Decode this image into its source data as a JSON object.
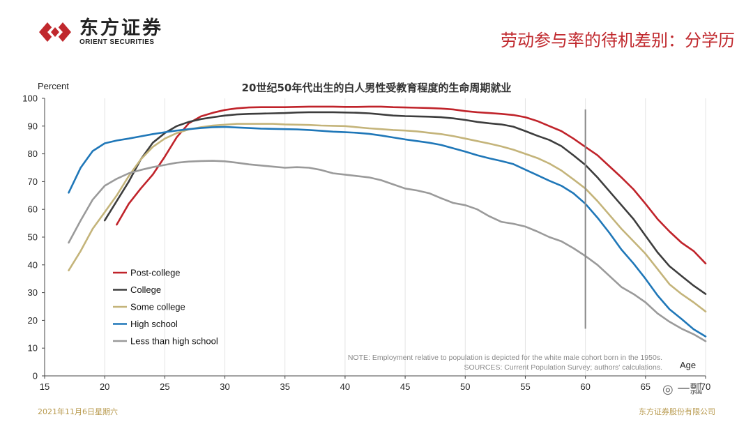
{
  "header": {
    "logo_cn": "东方证券",
    "logo_en": "ORIENT SECURITIES",
    "page_title": "劳动参与率的待机差别：分学历"
  },
  "footer": {
    "date": "2021年11月6日星期六",
    "company": "东方证券股份有限公司"
  },
  "watermark": "一瓢",
  "colors": {
    "brand_red": "#c0282d",
    "footer_gold": "#b89a4e",
    "post_college": "#c0232a",
    "college": "#3d3d3d",
    "some_college": "#c4b47a",
    "high_school": "#1f77b8",
    "less_than_high_school": "#9a9a9a",
    "vline": "#888888",
    "grid": "#e4e4e4"
  },
  "chart_data": {
    "type": "line",
    "title": "20世纪50年代出生的白人男性受教育程度的生命周期就业",
    "ylabel": "Percent",
    "xlabel": "Age",
    "xlim": [
      15,
      70
    ],
    "ylim": [
      0,
      100
    ],
    "xticks": [
      15,
      20,
      25,
      30,
      35,
      40,
      45,
      50,
      55,
      60,
      65,
      70
    ],
    "yticks": [
      0,
      10,
      20,
      30,
      40,
      50,
      60,
      70,
      80,
      90,
      100
    ],
    "grid": "vertical",
    "vline_x": 60,
    "vline_range": [
      17,
      96
    ],
    "legend_position": "bottom-left",
    "notes": [
      "NOTE: Employment  relative to population is depicted for the white male cohort born in the 1950s.",
      "SOURCES: Current Population Survey; authors' calculations."
    ],
    "series": [
      {
        "name": "Post-college",
        "color": "#c0232a",
        "points": [
          [
            21,
            54.5
          ],
          [
            22,
            62
          ],
          [
            23,
            67.5
          ],
          [
            24,
            72.5
          ],
          [
            25,
            79
          ],
          [
            26,
            86
          ],
          [
            27,
            91
          ],
          [
            28,
            93.5
          ],
          [
            29,
            94.8
          ],
          [
            30,
            95.8
          ],
          [
            31,
            96.4
          ],
          [
            32,
            96.7
          ],
          [
            33,
            96.8
          ],
          [
            34,
            96.8
          ],
          [
            35,
            96.8
          ],
          [
            36,
            96.9
          ],
          [
            37,
            97
          ],
          [
            38,
            97
          ],
          [
            39,
            97
          ],
          [
            40,
            96.9
          ],
          [
            41,
            96.9
          ],
          [
            42,
            97
          ],
          [
            43,
            97
          ],
          [
            44,
            96.8
          ],
          [
            45,
            96.7
          ],
          [
            46,
            96.6
          ],
          [
            47,
            96.5
          ],
          [
            48,
            96.3
          ],
          [
            49,
            96
          ],
          [
            50,
            95.4
          ],
          [
            51,
            95
          ],
          [
            52,
            94.7
          ],
          [
            53,
            94.4
          ],
          [
            54,
            94
          ],
          [
            55,
            93.2
          ],
          [
            56,
            91.8
          ],
          [
            57,
            90
          ],
          [
            58,
            88.2
          ],
          [
            59,
            85.5
          ],
          [
            60,
            82.5
          ],
          [
            61,
            79.5
          ],
          [
            62,
            75.5
          ],
          [
            63,
            71.5
          ],
          [
            64,
            67.2
          ],
          [
            65,
            62
          ],
          [
            66,
            56.5
          ],
          [
            67,
            52
          ],
          [
            68,
            48
          ],
          [
            69,
            45
          ],
          [
            70,
            40.5
          ]
        ]
      },
      {
        "name": "College",
        "color": "#3d3d3d",
        "points": [
          [
            20,
            56
          ],
          [
            21,
            63
          ],
          [
            22,
            70
          ],
          [
            23,
            78
          ],
          [
            24,
            84
          ],
          [
            25,
            87.5
          ],
          [
            26,
            90
          ],
          [
            27,
            91.5
          ],
          [
            28,
            92.5
          ],
          [
            29,
            93.2
          ],
          [
            30,
            93.8
          ],
          [
            31,
            94.2
          ],
          [
            32,
            94.4
          ],
          [
            33,
            94.5
          ],
          [
            34,
            94.6
          ],
          [
            35,
            94.7
          ],
          [
            36,
            94.9
          ],
          [
            37,
            95
          ],
          [
            38,
            95
          ],
          [
            39,
            95
          ],
          [
            40,
            94.9
          ],
          [
            41,
            94.8
          ],
          [
            42,
            94.6
          ],
          [
            43,
            94.2
          ],
          [
            44,
            93.8
          ],
          [
            45,
            93.6
          ],
          [
            46,
            93.5
          ],
          [
            47,
            93.4
          ],
          [
            48,
            93.2
          ],
          [
            49,
            92.8
          ],
          [
            50,
            92.2
          ],
          [
            51,
            91.5
          ],
          [
            52,
            91
          ],
          [
            53,
            90.6
          ],
          [
            54,
            89.8
          ],
          [
            55,
            88.2
          ],
          [
            56,
            86.5
          ],
          [
            57,
            85
          ],
          [
            58,
            82.8
          ],
          [
            59,
            79.5
          ],
          [
            60,
            76
          ],
          [
            61,
            71.5
          ],
          [
            62,
            66.5
          ],
          [
            63,
            61.5
          ],
          [
            64,
            56.5
          ],
          [
            65,
            50.5
          ],
          [
            66,
            44.5
          ],
          [
            67,
            39.5
          ],
          [
            68,
            36
          ],
          [
            69,
            32.5
          ],
          [
            70,
            29.5
          ]
        ]
      },
      {
        "name": "Some college",
        "color": "#c4b47a",
        "points": [
          [
            17,
            38
          ],
          [
            18,
            45
          ],
          [
            19,
            53
          ],
          [
            20,
            59
          ],
          [
            21,
            65
          ],
          [
            22,
            72
          ],
          [
            23,
            78
          ],
          [
            24,
            82.5
          ],
          [
            25,
            85.5
          ],
          [
            26,
            87.5
          ],
          [
            27,
            88.8
          ],
          [
            28,
            89.6
          ],
          [
            29,
            90.2
          ],
          [
            30,
            90.5
          ],
          [
            31,
            90.8
          ],
          [
            32,
            90.8
          ],
          [
            33,
            90.8
          ],
          [
            34,
            90.8
          ],
          [
            35,
            90.6
          ],
          [
            36,
            90.5
          ],
          [
            37,
            90.4
          ],
          [
            38,
            90.2
          ],
          [
            39,
            90.1
          ],
          [
            40,
            90
          ],
          [
            41,
            89.6
          ],
          [
            42,
            89.2
          ],
          [
            43,
            88.9
          ],
          [
            44,
            88.6
          ],
          [
            45,
            88.4
          ],
          [
            46,
            88.1
          ],
          [
            47,
            87.6
          ],
          [
            48,
            87.1
          ],
          [
            49,
            86.4
          ],
          [
            50,
            85.5
          ],
          [
            51,
            84.6
          ],
          [
            52,
            83.7
          ],
          [
            53,
            82.7
          ],
          [
            54,
            81.5
          ],
          [
            55,
            80
          ],
          [
            56,
            78.5
          ],
          [
            57,
            76.5
          ],
          [
            58,
            74
          ],
          [
            59,
            70.8
          ],
          [
            60,
            67.5
          ],
          [
            61,
            63
          ],
          [
            62,
            58
          ],
          [
            63,
            53
          ],
          [
            64,
            48.5
          ],
          [
            65,
            44
          ],
          [
            66,
            38.5
          ],
          [
            67,
            33
          ],
          [
            68,
            29.5
          ],
          [
            69,
            26.5
          ],
          [
            70,
            23.2
          ]
        ]
      },
      {
        "name": "High school",
        "color": "#1f77b8",
        "points": [
          [
            17,
            66
          ],
          [
            18,
            75
          ],
          [
            19,
            81
          ],
          [
            20,
            83.8
          ],
          [
            21,
            84.8
          ],
          [
            22,
            85.5
          ],
          [
            23,
            86.3
          ],
          [
            24,
            87.1
          ],
          [
            25,
            87.8
          ],
          [
            26,
            88.4
          ],
          [
            27,
            88.9
          ],
          [
            28,
            89.3
          ],
          [
            29,
            89.6
          ],
          [
            30,
            89.7
          ],
          [
            31,
            89.5
          ],
          [
            32,
            89.3
          ],
          [
            33,
            89.1
          ],
          [
            34,
            89
          ],
          [
            35,
            88.9
          ],
          [
            36,
            88.8
          ],
          [
            37,
            88.6
          ],
          [
            38,
            88.3
          ],
          [
            39,
            88
          ],
          [
            40,
            87.8
          ],
          [
            41,
            87.6
          ],
          [
            42,
            87.2
          ],
          [
            43,
            86.6
          ],
          [
            44,
            85.9
          ],
          [
            45,
            85.2
          ],
          [
            46,
            84.6
          ],
          [
            47,
            84
          ],
          [
            48,
            83.2
          ],
          [
            49,
            82
          ],
          [
            50,
            80.8
          ],
          [
            51,
            79.5
          ],
          [
            52,
            78.4
          ],
          [
            53,
            77.4
          ],
          [
            54,
            76.3
          ],
          [
            55,
            74.3
          ],
          [
            56,
            72.3
          ],
          [
            57,
            70.3
          ],
          [
            58,
            68.5
          ],
          [
            59,
            65.8
          ],
          [
            60,
            62
          ],
          [
            61,
            57
          ],
          [
            62,
            51.5
          ],
          [
            63,
            45.5
          ],
          [
            64,
            40.5
          ],
          [
            65,
            35
          ],
          [
            66,
            29
          ],
          [
            67,
            24
          ],
          [
            68,
            20.5
          ],
          [
            69,
            16.8
          ],
          [
            70,
            14.2
          ]
        ]
      },
      {
        "name": "Less than high school",
        "color": "#9a9a9a",
        "points": [
          [
            17,
            48
          ],
          [
            18,
            56
          ],
          [
            19,
            63.5
          ],
          [
            20,
            68.5
          ],
          [
            21,
            71
          ],
          [
            22,
            73
          ],
          [
            23,
            74.2
          ],
          [
            24,
            75.2
          ],
          [
            25,
            76
          ],
          [
            26,
            76.8
          ],
          [
            27,
            77.2
          ],
          [
            28,
            77.4
          ],
          [
            29,
            77.5
          ],
          [
            30,
            77.3
          ],
          [
            31,
            76.8
          ],
          [
            32,
            76.2
          ],
          [
            33,
            75.8
          ],
          [
            34,
            75.4
          ],
          [
            35,
            75
          ],
          [
            36,
            75.2
          ],
          [
            37,
            75
          ],
          [
            38,
            74.2
          ],
          [
            39,
            73
          ],
          [
            40,
            72.5
          ],
          [
            41,
            72
          ],
          [
            42,
            71.5
          ],
          [
            43,
            70.5
          ],
          [
            44,
            69
          ],
          [
            45,
            67.5
          ],
          [
            46,
            66.8
          ],
          [
            47,
            65.8
          ],
          [
            48,
            64
          ],
          [
            49,
            62.3
          ],
          [
            50,
            61.5
          ],
          [
            51,
            60
          ],
          [
            52,
            57.5
          ],
          [
            53,
            55.5
          ],
          [
            54,
            54.8
          ],
          [
            55,
            53.8
          ],
          [
            56,
            52
          ],
          [
            57,
            50
          ],
          [
            58,
            48.5
          ],
          [
            59,
            46
          ],
          [
            60,
            43.2
          ],
          [
            61,
            40
          ],
          [
            62,
            36
          ],
          [
            63,
            32
          ],
          [
            64,
            29.5
          ],
          [
            65,
            26.5
          ],
          [
            66,
            22.5
          ],
          [
            67,
            19.5
          ],
          [
            68,
            17
          ],
          [
            69,
            15
          ],
          [
            70,
            12.5
          ]
        ]
      }
    ]
  }
}
